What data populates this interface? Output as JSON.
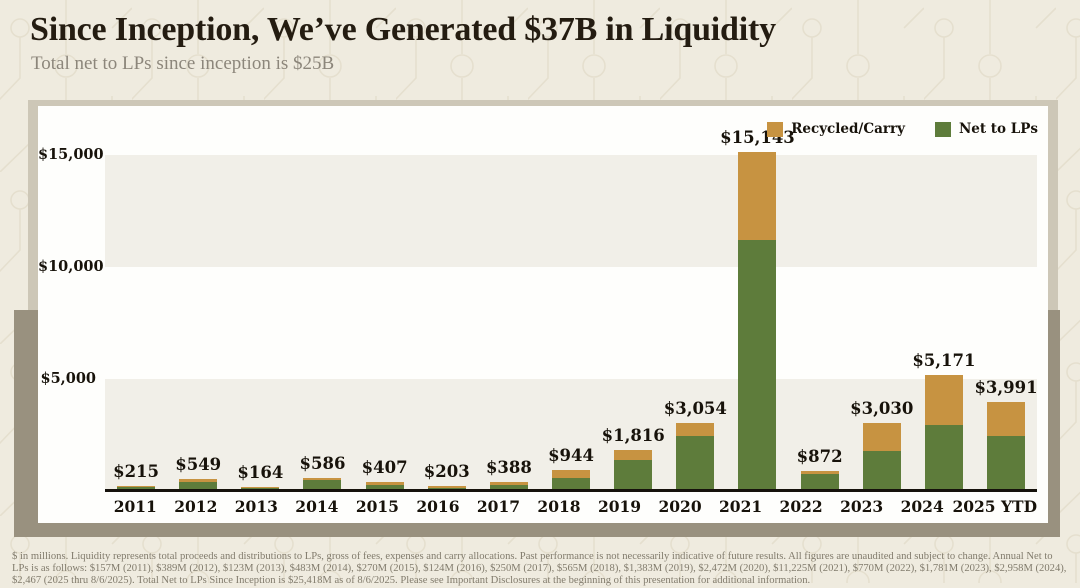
{
  "page": {
    "title": "Since Inception, We’ve Generated $37B in Liquidity",
    "subtitle": "Total net to LPs since inception is $25B",
    "footnote": "$ in millions. Liquidity represents total proceeds and distributions to LPs, gross of fees, expenses and carry allocations. Past performance is not necessarily indicative of future results. All figures are unaudited and subject to change. Annual Net to LPs is as follows: $157M (2011), $389M (2012), $123M (2013), $483M (2014), $270M (2015), $124M (2016), $250M (2017), $565M (2018), $1,383M (2019), $2,472M (2020), $11,225M (2021), $770M (2022), $1,781M (2023), $2,958M (2024), $2,467 (2025 thru 8/6/2025). Total Net to LPs Since Inception is $25,418M as of 8/6/2025. Please see Important Disclosures at the beginning of this presentation for additional information."
  },
  "colors": {
    "recycled": "#C79341",
    "net": "#5E7C3B",
    "page_bg": "#EFEBDF",
    "pattern_line": "#E3DDCC",
    "panel_bg": "#FEFEFC",
    "band": "#F1EFE8",
    "frame_light": "#CDC7B7",
    "frame_dark": "#99917F",
    "axis": "#16120C",
    "text_dark": "#17120A",
    "title": "#241C11",
    "subtitle": "#8C867B",
    "footnote_text": "#817B6C"
  },
  "legend": [
    {
      "label": "Recycled/Carry",
      "color_key": "recycled"
    },
    {
      "label": "Net to LPs",
      "color_key": "net"
    }
  ],
  "chart_data": {
    "type": "bar",
    "stacked": true,
    "title": "Since Inception, We’ve Generated $37B in Liquidity",
    "xlabel": "",
    "ylabel": "$ in millions",
    "categories": [
      "2011",
      "2012",
      "2013",
      "2014",
      "2015",
      "2016",
      "2017",
      "2018",
      "2019",
      "2020",
      "2021",
      "2022",
      "2023",
      "2024",
      "2025 YTD"
    ],
    "series": [
      {
        "name": "Net to LPs",
        "color": "#5E7C3B",
        "values": [
          157,
          389,
          123,
          483,
          270,
          124,
          250,
          565,
          1383,
          2472,
          11225,
          770,
          1781,
          2958,
          2467
        ]
      },
      {
        "name": "Recycled/Carry",
        "color": "#C79341",
        "values": [
          58,
          160,
          41,
          103,
          137,
          79,
          138,
          379,
          433,
          582,
          3918,
          102,
          1249,
          2213,
          1524
        ]
      }
    ],
    "totals": [
      215,
      549,
      164,
      586,
      407,
      203,
      388,
      944,
      1816,
      3054,
      15143,
      872,
      3030,
      5171,
      3991
    ],
    "total_labels": [
      "$215",
      "$549",
      "$164",
      "$586",
      "$407",
      "$203",
      "$388",
      "$944",
      "$1,816",
      "$3,054",
      "$15,143",
      "$872",
      "$3,030",
      "$5,171",
      "$3,991"
    ],
    "y_ticks": [
      {
        "value": 5000,
        "label": "$5,000"
      },
      {
        "value": 10000,
        "label": "$10,000"
      },
      {
        "value": 15000,
        "label": "$15,000"
      }
    ],
    "ylim": [
      0,
      17200
    ],
    "shaded_bands": [
      [
        0,
        5000
      ],
      [
        10000,
        15000
      ]
    ],
    "grid": "alternating-horizontal-bands",
    "legend_position": "top-right"
  }
}
